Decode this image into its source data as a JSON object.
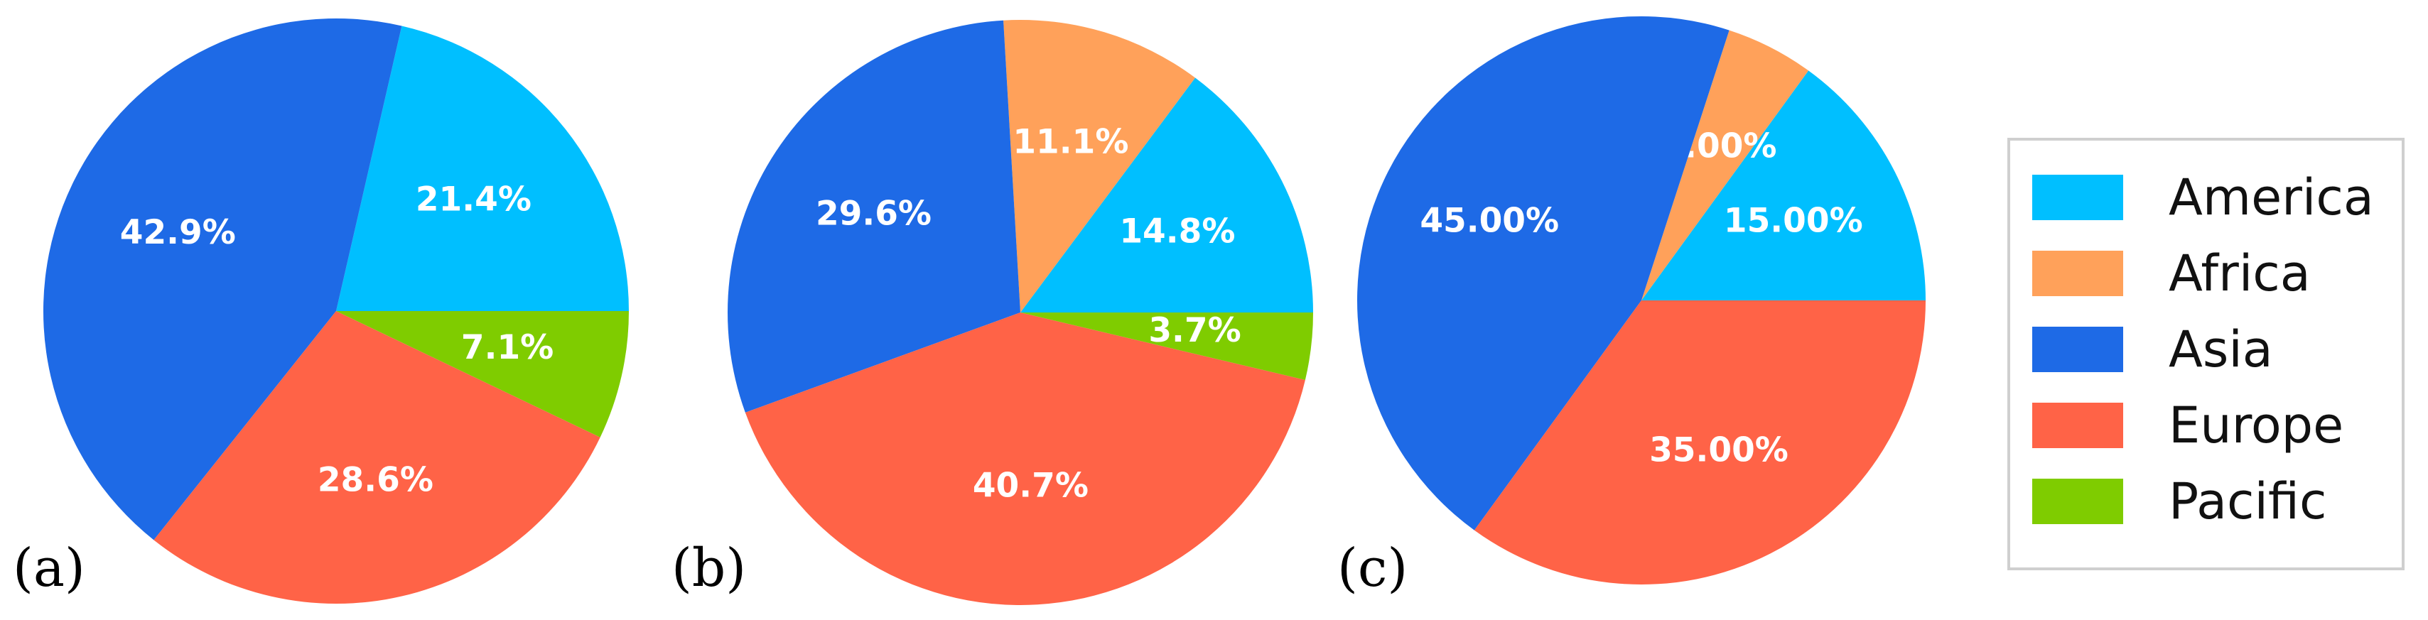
{
  "chart_data": [
    {
      "type": "pie",
      "panel_label": "(a)",
      "start_angle_deg": 0,
      "direction": "counterclockwise",
      "slices": [
        {
          "category": "America",
          "value": 21.4,
          "label": "21.4%"
        },
        {
          "category": "Africa",
          "value": 0,
          "label": ""
        },
        {
          "category": "Asia",
          "value": 42.9,
          "label": "42.9%"
        },
        {
          "category": "Europe",
          "value": 28.6,
          "label": "28.6%"
        },
        {
          "category": "Pacific",
          "value": 7.1,
          "label": "7.1%"
        }
      ]
    },
    {
      "type": "pie",
      "panel_label": "(b)",
      "start_angle_deg": 0,
      "direction": "counterclockwise",
      "slices": [
        {
          "category": "America",
          "value": 14.8,
          "label": "14.8%"
        },
        {
          "category": "Africa",
          "value": 11.1,
          "label": "11.1%"
        },
        {
          "category": "Asia",
          "value": 29.6,
          "label": "29.6%"
        },
        {
          "category": "Europe",
          "value": 40.7,
          "label": "40.7%"
        },
        {
          "category": "Pacific",
          "value": 3.7,
          "label": "3.7%"
        }
      ]
    },
    {
      "type": "pie",
      "panel_label": "(c)",
      "start_angle_deg": 0,
      "direction": "counterclockwise",
      "slices": [
        {
          "category": "America",
          "value": 15.0,
          "label": "15.00%"
        },
        {
          "category": "Africa",
          "value": 5.0,
          "label": "5.00%"
        },
        {
          "category": "Asia",
          "value": 45.0,
          "label": "45.00%"
        },
        {
          "category": "Europe",
          "value": 35.0,
          "label": "35.00%"
        },
        {
          "category": "Pacific",
          "value": 0,
          "label": ""
        }
      ]
    }
  ],
  "legend": {
    "placement": "right",
    "entries": [
      {
        "name": "America",
        "color": "#00BFFF"
      },
      {
        "name": "Africa",
        "color": "#FFA15A"
      },
      {
        "name": "Asia",
        "color": "#1E6AE6"
      },
      {
        "name": "Europe",
        "color": "#FF6347"
      },
      {
        "name": "Pacific",
        "color": "#7FCC00"
      }
    ]
  },
  "colors": {
    "America": "#00BFFF",
    "Africa": "#FFA15A",
    "Asia": "#1E6AE6",
    "Europe": "#FF6347",
    "Pacific": "#7FCC00"
  }
}
